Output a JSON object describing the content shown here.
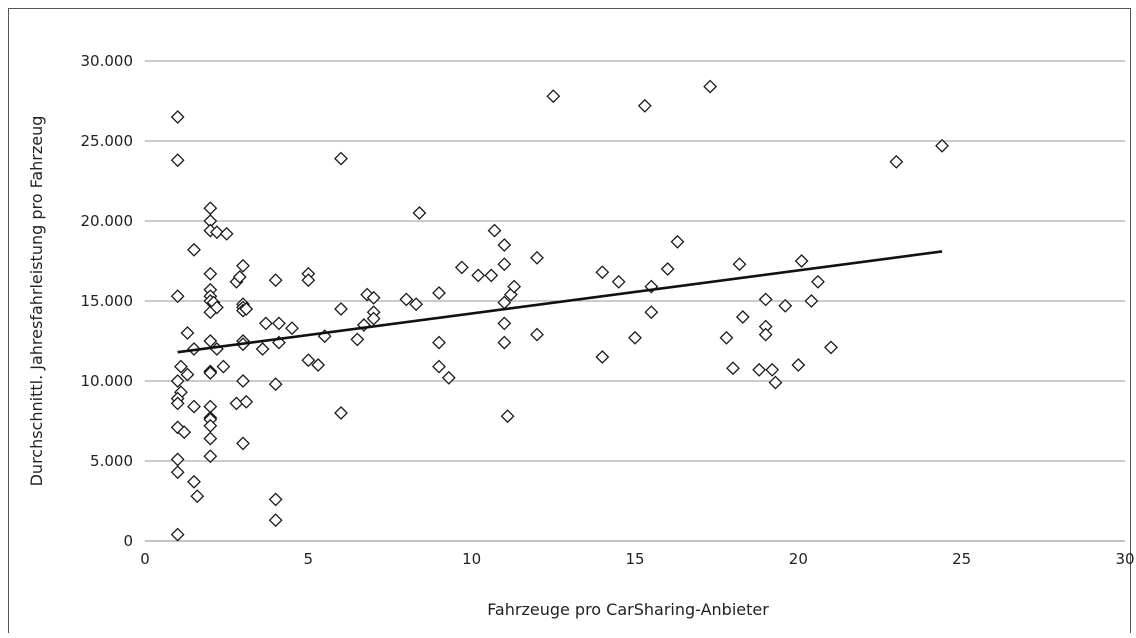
{
  "chart_data": {
    "type": "scatter",
    "xlabel": "Fahrzeuge pro CarSharing-Anbieter",
    "ylabel": "Durchschnittl. Jahresfahrleistung pro Fahrzeug",
    "xlim": [
      0,
      30
    ],
    "ylim": [
      0,
      30000
    ],
    "x_ticks": [
      "0",
      "5",
      "10",
      "15",
      "20",
      "25",
      "30"
    ],
    "y_ticks": [
      "0",
      "5.000",
      "10.000",
      "15.000",
      "20.000",
      "25.000",
      "30.000"
    ],
    "grid": "horizontal",
    "marker": "diamond",
    "trendline": {
      "x": [
        1,
        24.4
      ],
      "y": [
        11800,
        18100
      ]
    },
    "points": [
      {
        "x": 1.0,
        "y": 26500
      },
      {
        "x": 1.0,
        "y": 23800
      },
      {
        "x": 1.0,
        "y": 15300
      },
      {
        "x": 1.1,
        "y": 10900
      },
      {
        "x": 1.0,
        "y": 10000
      },
      {
        "x": 1.1,
        "y": 9300
      },
      {
        "x": 1.0,
        "y": 8900
      },
      {
        "x": 1.0,
        "y": 8600
      },
      {
        "x": 1.0,
        "y": 7100
      },
      {
        "x": 1.0,
        "y": 5100
      },
      {
        "x": 1.0,
        "y": 4300
      },
      {
        "x": 1.0,
        "y": 400
      },
      {
        "x": 1.2,
        "y": 6800
      },
      {
        "x": 1.3,
        "y": 10400
      },
      {
        "x": 1.3,
        "y": 13000
      },
      {
        "x": 1.5,
        "y": 12000
      },
      {
        "x": 1.5,
        "y": 8400
      },
      {
        "x": 1.5,
        "y": 3700
      },
      {
        "x": 1.6,
        "y": 2800
      },
      {
        "x": 1.5,
        "y": 18200
      },
      {
        "x": 2.0,
        "y": 20800
      },
      {
        "x": 2.0,
        "y": 20000
      },
      {
        "x": 2.0,
        "y": 19400
      },
      {
        "x": 2.0,
        "y": 16700
      },
      {
        "x": 2.0,
        "y": 15700
      },
      {
        "x": 2.0,
        "y": 15300
      },
      {
        "x": 2.0,
        "y": 15000
      },
      {
        "x": 2.1,
        "y": 14900
      },
      {
        "x": 2.0,
        "y": 14300
      },
      {
        "x": 2.0,
        "y": 12500
      },
      {
        "x": 2.0,
        "y": 10600
      },
      {
        "x": 2.0,
        "y": 10500
      },
      {
        "x": 2.0,
        "y": 8400
      },
      {
        "x": 2.0,
        "y": 7700
      },
      {
        "x": 2.0,
        "y": 7600
      },
      {
        "x": 2.0,
        "y": 7200
      },
      {
        "x": 2.0,
        "y": 6400
      },
      {
        "x": 2.0,
        "y": 5300
      },
      {
        "x": 2.2,
        "y": 19300
      },
      {
        "x": 2.2,
        "y": 14600
      },
      {
        "x": 2.2,
        "y": 12000
      },
      {
        "x": 2.4,
        "y": 10900
      },
      {
        "x": 2.5,
        "y": 19200
      },
      {
        "x": 2.8,
        "y": 16200
      },
      {
        "x": 2.8,
        "y": 8600
      },
      {
        "x": 2.9,
        "y": 16500
      },
      {
        "x": 3.0,
        "y": 17200
      },
      {
        "x": 3.0,
        "y": 14800
      },
      {
        "x": 3.0,
        "y": 14600
      },
      {
        "x": 3.0,
        "y": 14400
      },
      {
        "x": 3.1,
        "y": 14500
      },
      {
        "x": 3.0,
        "y": 12500
      },
      {
        "x": 3.0,
        "y": 12300
      },
      {
        "x": 3.0,
        "y": 10000
      },
      {
        "x": 3.1,
        "y": 8700
      },
      {
        "x": 3.0,
        "y": 6100
      },
      {
        "x": 3.6,
        "y": 12000
      },
      {
        "x": 3.7,
        "y": 13600
      },
      {
        "x": 4.0,
        "y": 16300
      },
      {
        "x": 4.1,
        "y": 13600
      },
      {
        "x": 4.1,
        "y": 12400
      },
      {
        "x": 4.0,
        "y": 9800
      },
      {
        "x": 4.0,
        "y": 2600
      },
      {
        "x": 4.0,
        "y": 1300
      },
      {
        "x": 4.5,
        "y": 13300
      },
      {
        "x": 5.0,
        "y": 16700
      },
      {
        "x": 5.0,
        "y": 16300
      },
      {
        "x": 5.0,
        "y": 11300
      },
      {
        "x": 5.3,
        "y": 11000
      },
      {
        "x": 5.5,
        "y": 12800
      },
      {
        "x": 6.0,
        "y": 23900
      },
      {
        "x": 6.0,
        "y": 14500
      },
      {
        "x": 6.0,
        "y": 8000
      },
      {
        "x": 6.5,
        "y": 12600
      },
      {
        "x": 6.8,
        "y": 15400
      },
      {
        "x": 6.7,
        "y": 13500
      },
      {
        "x": 7.0,
        "y": 15200
      },
      {
        "x": 7.0,
        "y": 14300
      },
      {
        "x": 7.0,
        "y": 13900
      },
      {
        "x": 8.0,
        "y": 15100
      },
      {
        "x": 8.3,
        "y": 14800
      },
      {
        "x": 8.4,
        "y": 20500
      },
      {
        "x": 9.0,
        "y": 15500
      },
      {
        "x": 9.0,
        "y": 12400
      },
      {
        "x": 9.0,
        "y": 10900
      },
      {
        "x": 9.3,
        "y": 10200
      },
      {
        "x": 9.7,
        "y": 17100
      },
      {
        "x": 10.2,
        "y": 16600
      },
      {
        "x": 10.6,
        "y": 16600
      },
      {
        "x": 10.7,
        "y": 19400
      },
      {
        "x": 11.0,
        "y": 18500
      },
      {
        "x": 11.0,
        "y": 17300
      },
      {
        "x": 11.0,
        "y": 14900
      },
      {
        "x": 11.0,
        "y": 13600
      },
      {
        "x": 11.0,
        "y": 12400
      },
      {
        "x": 11.2,
        "y": 15400
      },
      {
        "x": 11.3,
        "y": 15900
      },
      {
        "x": 11.1,
        "y": 7800
      },
      {
        "x": 12.0,
        "y": 17700
      },
      {
        "x": 12.0,
        "y": 12900
      },
      {
        "x": 12.5,
        "y": 27800
      },
      {
        "x": 14.0,
        "y": 16800
      },
      {
        "x": 14.0,
        "y": 11500
      },
      {
        "x": 14.5,
        "y": 16200
      },
      {
        "x": 15.0,
        "y": 12700
      },
      {
        "x": 15.3,
        "y": 27200
      },
      {
        "x": 15.5,
        "y": 15900
      },
      {
        "x": 15.5,
        "y": 14300
      },
      {
        "x": 16.0,
        "y": 17000
      },
      {
        "x": 16.3,
        "y": 18700
      },
      {
        "x": 17.3,
        "y": 28400
      },
      {
        "x": 17.8,
        "y": 12700
      },
      {
        "x": 18.0,
        "y": 10800
      },
      {
        "x": 18.2,
        "y": 17300
      },
      {
        "x": 18.3,
        "y": 14000
      },
      {
        "x": 18.8,
        "y": 10700
      },
      {
        "x": 19.0,
        "y": 15100
      },
      {
        "x": 19.0,
        "y": 13400
      },
      {
        "x": 19.0,
        "y": 12900
      },
      {
        "x": 19.2,
        "y": 10700
      },
      {
        "x": 19.3,
        "y": 9900
      },
      {
        "x": 19.6,
        "y": 14700
      },
      {
        "x": 20.0,
        "y": 11000
      },
      {
        "x": 20.1,
        "y": 17500
      },
      {
        "x": 20.4,
        "y": 15000
      },
      {
        "x": 20.6,
        "y": 16200
      },
      {
        "x": 21.0,
        "y": 12100
      },
      {
        "x": 23.0,
        "y": 23700
      },
      {
        "x": 24.4,
        "y": 24700
      }
    ]
  }
}
